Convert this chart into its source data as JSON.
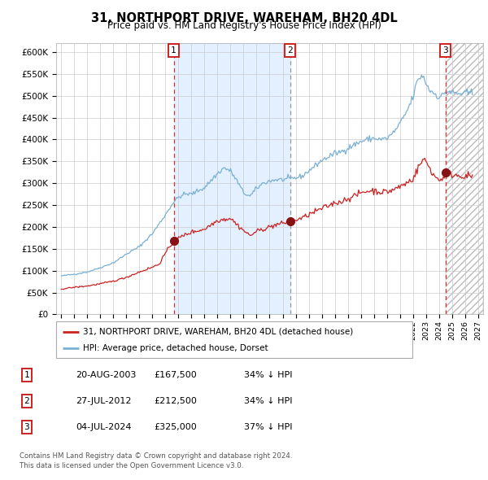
{
  "title": "31, NORTHPORT DRIVE, WAREHAM, BH20 4DL",
  "subtitle": "Price paid vs. HM Land Registry's House Price Index (HPI)",
  "ylim": [
    0,
    620000
  ],
  "yticks": [
    0,
    50000,
    100000,
    150000,
    200000,
    250000,
    300000,
    350000,
    400000,
    450000,
    500000,
    550000,
    600000
  ],
  "hpi_color": "#7ab0d4",
  "hpi_fill": "#ddeeff",
  "price_color": "#cc2222",
  "sale_marker_color": "#881111",
  "sale1_x": 2003.63,
  "sale1_y": 167500,
  "sale2_x": 2012.57,
  "sale2_y": 212500,
  "sale3_x": 2024.51,
  "sale3_y": 325000,
  "xmin": 1994.6,
  "xmax": 2027.4,
  "background_color": "#ffffff",
  "grid_color": "#cccccc",
  "legend_label_price": "31, NORTHPORT DRIVE, WAREHAM, BH20 4DL (detached house)",
  "legend_label_hpi": "HPI: Average price, detached house, Dorset",
  "table_rows": [
    {
      "num": "1",
      "date": "20-AUG-2003",
      "price": "£167,500",
      "change": "34% ↓ HPI"
    },
    {
      "num": "2",
      "date": "27-JUL-2012",
      "price": "£212,500",
      "change": "34% ↓ HPI"
    },
    {
      "num": "3",
      "date": "04-JUL-2024",
      "price": "£325,000",
      "change": "37% ↓ HPI"
    }
  ],
  "footnote1": "Contains HM Land Registry data © Crown copyright and database right 2024.",
  "footnote2": "This data is licensed under the Open Government Licence v3.0.",
  "hatch_start": 2024.51,
  "hatch_end": 2027.4
}
